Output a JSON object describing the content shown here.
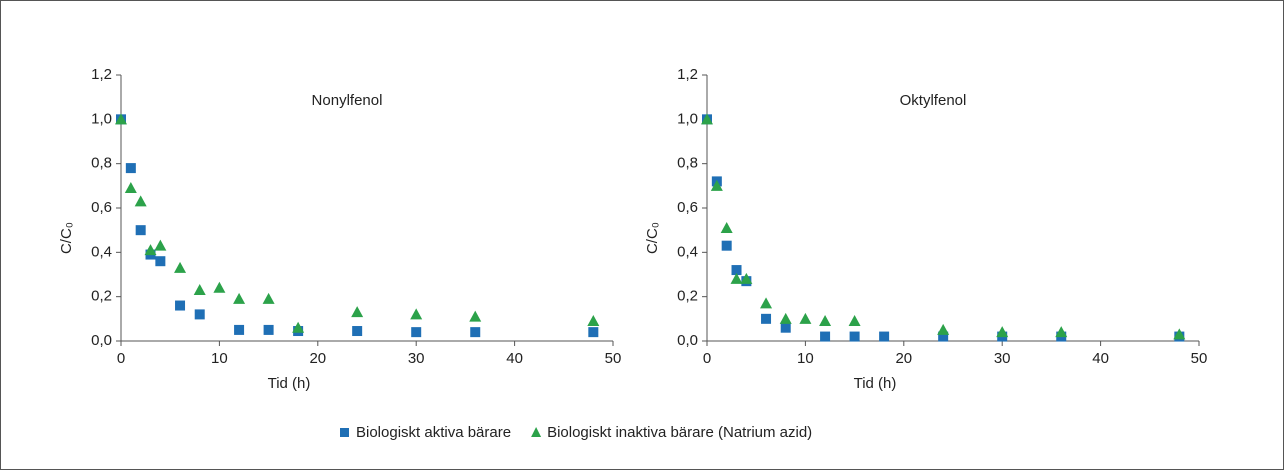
{
  "chart_data": [
    {
      "type": "scatter",
      "title": "Nonylfenol",
      "xlabel": "Tid (h)",
      "ylabel": "C/C₀",
      "xlim": [
        0,
        50
      ],
      "xticks": [
        0,
        10,
        20,
        30,
        40,
        50
      ],
      "ylim": [
        0,
        1.2
      ],
      "yticks": [
        {
          "value": 0,
          "label": "0,0"
        },
        {
          "value": 0.2,
          "label": "0,2"
        },
        {
          "value": 0.4,
          "label": "0,4"
        },
        {
          "value": 0.6,
          "label": "0,6"
        },
        {
          "value": 0.8,
          "label": "0,8"
        },
        {
          "value": 1.0,
          "label": "1,0"
        },
        {
          "value": 1.2,
          "label": "1,2"
        }
      ],
      "series": [
        {
          "name": "Biologiskt aktiva bärare",
          "color": "#1f6fb5",
          "marker": "square",
          "x": [
            0,
            1,
            2,
            3,
            4,
            6,
            8,
            12,
            15,
            18,
            24,
            30,
            36,
            48
          ],
          "values": [
            1.0,
            0.78,
            0.5,
            0.39,
            0.36,
            0.16,
            0.12,
            0.05,
            0.05,
            0.045,
            0.045,
            0.04,
            0.04,
            0.04
          ]
        },
        {
          "name": "Biologiskt inaktiva bärare (Natrium azid)",
          "color": "#2ca24a",
          "marker": "triangle",
          "x": [
            0,
            1,
            2,
            3,
            4,
            6,
            8,
            10,
            12,
            15,
            18,
            24,
            30,
            36,
            48
          ],
          "values": [
            1.0,
            0.69,
            0.63,
            0.41,
            0.43,
            0.33,
            0.23,
            0.24,
            0.19,
            0.19,
            0.06,
            0.13,
            0.12,
            0.11,
            0.09
          ]
        }
      ]
    },
    {
      "type": "scatter",
      "title": "Oktylfenol",
      "xlabel": "Tid (h)",
      "ylabel": "C/C₀",
      "xlim": [
        0,
        50
      ],
      "xticks": [
        0,
        10,
        20,
        30,
        40,
        50
      ],
      "ylim": [
        0,
        1.2
      ],
      "yticks": [
        {
          "value": 0,
          "label": "0,0"
        },
        {
          "value": 0.2,
          "label": "0,2"
        },
        {
          "value": 0.4,
          "label": "0,4"
        },
        {
          "value": 0.6,
          "label": "0,6"
        },
        {
          "value": 0.8,
          "label": "0,8"
        },
        {
          "value": 1.0,
          "label": "1,0"
        },
        {
          "value": 1.2,
          "label": "1,2"
        }
      ],
      "series": [
        {
          "name": "Biologiskt aktiva bärare",
          "color": "#1f6fb5",
          "marker": "square",
          "x": [
            0,
            1,
            2,
            3,
            4,
            6,
            8,
            12,
            15,
            18,
            24,
            30,
            36,
            48
          ],
          "values": [
            1.0,
            0.72,
            0.43,
            0.32,
            0.27,
            0.1,
            0.06,
            0.02,
            0.02,
            0.02,
            0.02,
            0.02,
            0.02,
            0.02
          ]
        },
        {
          "name": "Biologiskt inaktiva bärare (Natrium azid)",
          "color": "#2ca24a",
          "marker": "triangle",
          "x": [
            0,
            1,
            2,
            3,
            4,
            6,
            8,
            10,
            12,
            15,
            24,
            30,
            36,
            48
          ],
          "values": [
            1.0,
            0.7,
            0.51,
            0.28,
            0.28,
            0.17,
            0.1,
            0.1,
            0.09,
            0.09,
            0.05,
            0.04,
            0.04,
            0.03
          ]
        }
      ]
    }
  ]
}
